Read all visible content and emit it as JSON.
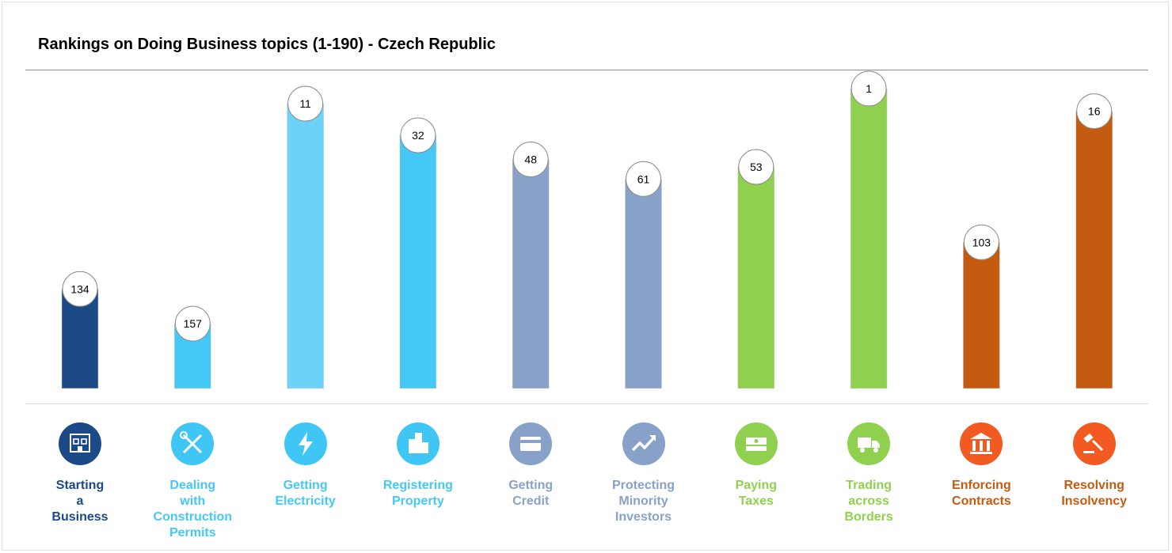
{
  "chart_data": {
    "type": "bar",
    "title": "Rankings on Doing Business topics (1-190) - Czech Republic",
    "xlabel": "",
    "ylabel": "",
    "ylim": [
      1,
      190
    ],
    "y_reversed": true,
    "grid": false,
    "legend": "none",
    "categories": [
      "Starting\na\nBusiness",
      "Dealing\nwith\nConstruction\nPermits",
      "Getting\nElectricity",
      "Registering\nProperty",
      "Getting\nCredit",
      "Protecting\nMinority\nInvestors",
      "Paying\nTaxes",
      "Trading\nacross\nBorders",
      "Enforcing\nContracts",
      "Resolving\nInsolvency"
    ],
    "values": [
      134,
      157,
      11,
      32,
      48,
      61,
      53,
      1,
      103,
      16
    ],
    "data_labels": [
      "134",
      "157",
      "11",
      "32",
      "48",
      "61",
      "53",
      "1",
      "103",
      "16"
    ],
    "colors": [
      "#1b4a86",
      "#45c8f5",
      "#6dd2f7",
      "#45c8f5",
      "#87a1c8",
      "#87a1c8",
      "#8fd14f",
      "#8fd14f",
      "#c55a11",
      "#c55a11"
    ],
    "icons": [
      "building-icon",
      "wrench-screwdriver-icon",
      "lightning-icon",
      "city-icon",
      "credit-card-icon",
      "trend-up-icon",
      "money-icon",
      "truck-icon",
      "courthouse-icon",
      "gavel-icon"
    ],
    "icon_colors": [
      "#1b4a86",
      "#3fc6f4",
      "#3fc6f4",
      "#3fc6f4",
      "#87a1c8",
      "#87a1c8",
      "#8fd14f",
      "#8fd14f",
      "#f25a21",
      "#f25a21"
    ]
  }
}
